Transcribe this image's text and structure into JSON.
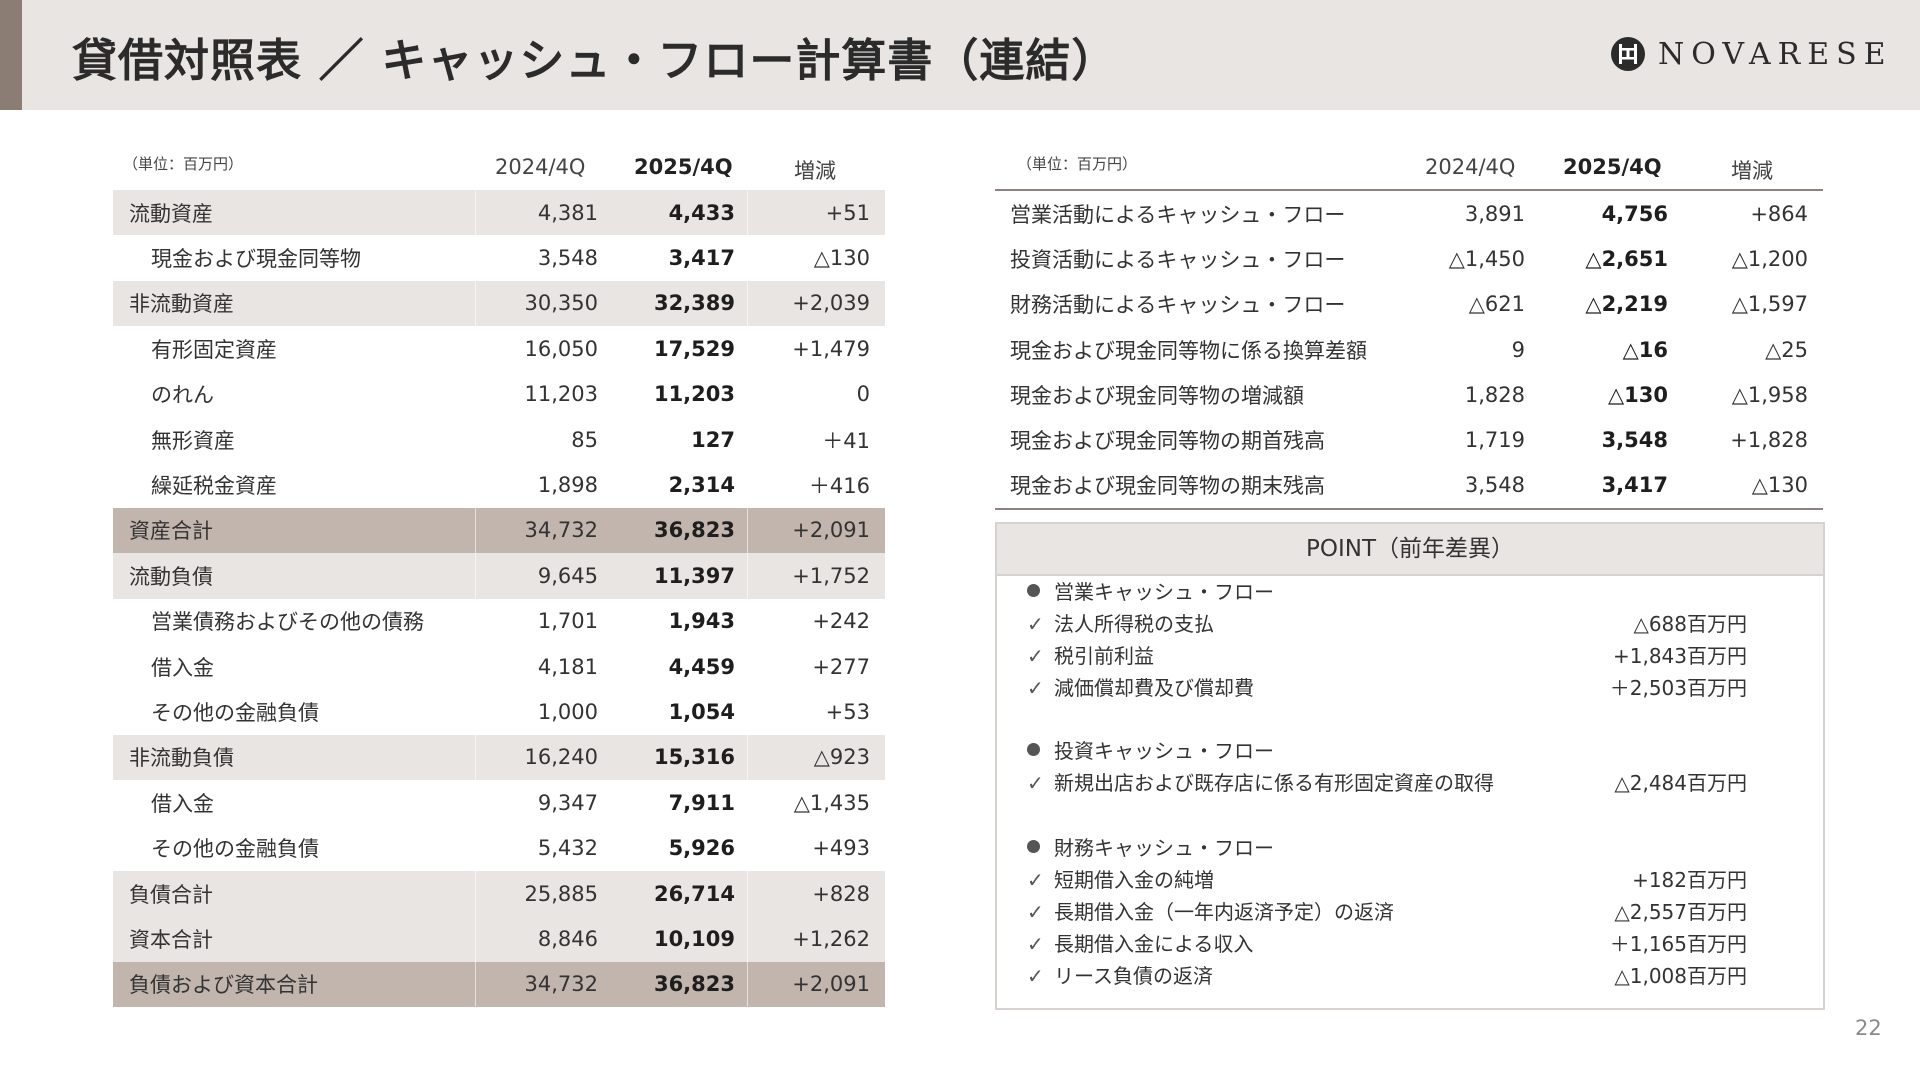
{
  "header": {
    "title": "貸借対照表 ／ キャッシュ・フロー計算書（連結）",
    "logo_text": "NOVARESE"
  },
  "balance_sheet": {
    "unit": "（単位：百万円）",
    "columns": [
      "2024/4Q",
      "2025/4Q",
      "増減"
    ],
    "rows": [
      {
        "label": "流動資産",
        "v2024": "4,381",
        "v2025": "4,433",
        "diff": "+51"
      },
      {
        "label": "現金および現金同等物",
        "v2024": "3,548",
        "v2025": "3,417",
        "diff": "△130"
      },
      {
        "label": "非流動資産",
        "v2024": "30,350",
        "v2025": "32,389",
        "diff": "+2,039"
      },
      {
        "label": "有形固定資産",
        "v2024": "16,050",
        "v2025": "17,529",
        "diff": "+1,479"
      },
      {
        "label": "のれん",
        "v2024": "11,203",
        "v2025": "11,203",
        "diff": "0"
      },
      {
        "label": "無形資産",
        "v2024": "85",
        "v2025": "127",
        "diff": "＋41"
      },
      {
        "label": "繰延税金資産",
        "v2024": "1,898",
        "v2025": "2,314",
        "diff": "＋416"
      },
      {
        "label": "資産合計",
        "v2024": "34,732",
        "v2025": "36,823",
        "diff": "+2,091"
      },
      {
        "label": "流動負債",
        "v2024": "9,645",
        "v2025": "11,397",
        "diff": "+1,752"
      },
      {
        "label": "営業債務およびその他の債務",
        "v2024": "1,701",
        "v2025": "1,943",
        "diff": "+242"
      },
      {
        "label": "借入金",
        "v2024": "4,181",
        "v2025": "4,459",
        "diff": "+277"
      },
      {
        "label": "その他の金融負債",
        "v2024": "1,000",
        "v2025": "1,054",
        "diff": "+53"
      },
      {
        "label": "非流動負債",
        "v2024": "16,240",
        "v2025": "15,316",
        "diff": "△923"
      },
      {
        "label": "借入金",
        "v2024": "9,347",
        "v2025": "7,911",
        "diff": "△1,435"
      },
      {
        "label": "その他の金融負債",
        "v2024": "5,432",
        "v2025": "5,926",
        "diff": "+493"
      },
      {
        "label": "負債合計",
        "v2024": "25,885",
        "v2025": "26,714",
        "diff": "+828"
      },
      {
        "label": "資本合計",
        "v2024": "8,846",
        "v2025": "10,109",
        "diff": "+1,262"
      },
      {
        "label": "負債および資本合計",
        "v2024": "34,732",
        "v2025": "36,823",
        "diff": "+2,091"
      }
    ]
  },
  "cash_flow": {
    "unit": "（単位：百万円）",
    "columns": [
      "2024/4Q",
      "2025/4Q",
      "増減"
    ],
    "rows": [
      {
        "label": "営業活動によるキャッシュ・フロー",
        "v2024": "3,891",
        "v2025": "4,756",
        "diff": "+864"
      },
      {
        "label": "投資活動によるキャッシュ・フロー",
        "v2024": "△1,450",
        "v2025": "△2,651",
        "diff": "△1,200"
      },
      {
        "label": "財務活動によるキャッシュ・フロー",
        "v2024": "△621",
        "v2025": "△2,219",
        "diff": "△1,597"
      },
      {
        "label": "現金および現金同等物に係る換算差額",
        "v2024": "9",
        "v2025": "△16",
        "diff": "△25"
      },
      {
        "label": "現金および現金同等物の増減額",
        "v2024": "1,828",
        "v2025": "△130",
        "diff": "△1,958"
      },
      {
        "label": "現金および現金同等物の期首残高",
        "v2024": "1,719",
        "v2025": "3,548",
        "diff": "+1,828"
      },
      {
        "label": "現金および現金同等物の期末残高",
        "v2024": "3,548",
        "v2025": "3,417",
        "diff": "△130"
      }
    ]
  },
  "point": {
    "title": "POINT（前年差異）",
    "sections": [
      {
        "title": "営業キャッシュ・フロー",
        "items": [
          {
            "label": "法人所得税の支払",
            "value": "△688百万円"
          },
          {
            "label": "税引前利益",
            "value": "+1,843百万円"
          },
          {
            "label": "減価償却費及び償却費",
            "value": "＋2,503百万円"
          }
        ]
      },
      {
        "title": "投資キャッシュ・フロー",
        "items": [
          {
            "label": "新規出店および既存店に係る有形固定資産の取得",
            "value": "△2,484百万円"
          }
        ]
      },
      {
        "title": "財務キャッシュ・フロー",
        "items": [
          {
            "label": "短期借入金の純増",
            "value": "+182百万円"
          },
          {
            "label": "長期借入金（一年内返済予定）の返済",
            "value": "△2,557百万円"
          },
          {
            "label": "長期借入金による収入",
            "value": "＋1,165百万円"
          },
          {
            "label": "リース負債の返済",
            "value": "△1,008百万円"
          }
        ]
      }
    ],
    "check_glyph": "✓"
  },
  "page_number": "22"
}
